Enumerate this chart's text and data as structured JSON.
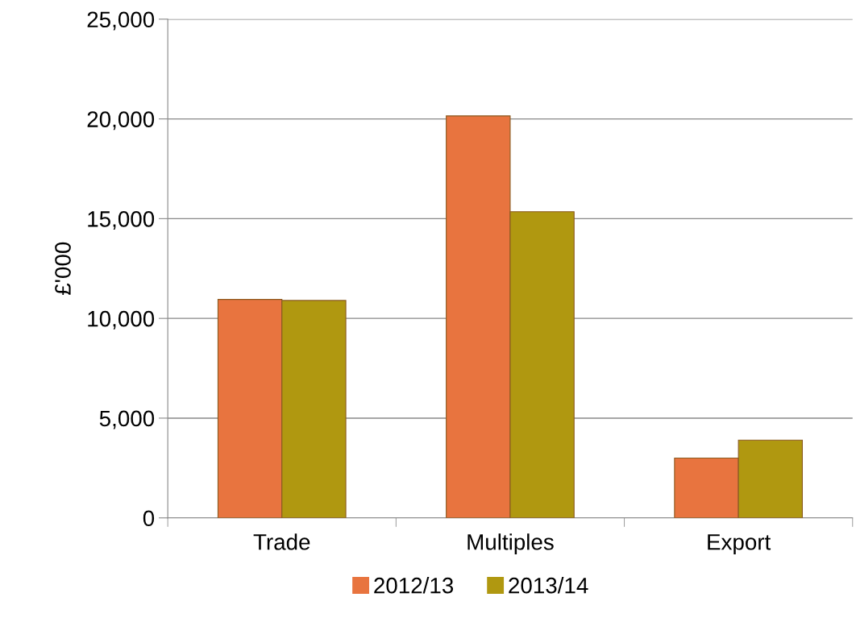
{
  "chart_data": {
    "type": "bar",
    "ylabel": "£'000",
    "categories": [
      "Trade",
      "Multiples",
      "Export"
    ],
    "series": [
      {
        "name": "2012/13",
        "color": "#e8743f",
        "values": [
          10950,
          20150,
          3000
        ]
      },
      {
        "name": "2013/14",
        "color": "#b09810",
        "values": [
          10900,
          15350,
          3900
        ]
      }
    ],
    "ylim": [
      0,
      25000
    ],
    "yticks": [
      {
        "value": 0,
        "label": "0"
      },
      {
        "value": 5000,
        "label": "5,000"
      },
      {
        "value": 10000,
        "label": "10,000"
      },
      {
        "value": 15000,
        "label": "15,000"
      },
      {
        "value": 20000,
        "label": "20,000"
      },
      {
        "value": 25000,
        "label": "25,000"
      }
    ],
    "grid": "y",
    "legend": "bottom"
  }
}
